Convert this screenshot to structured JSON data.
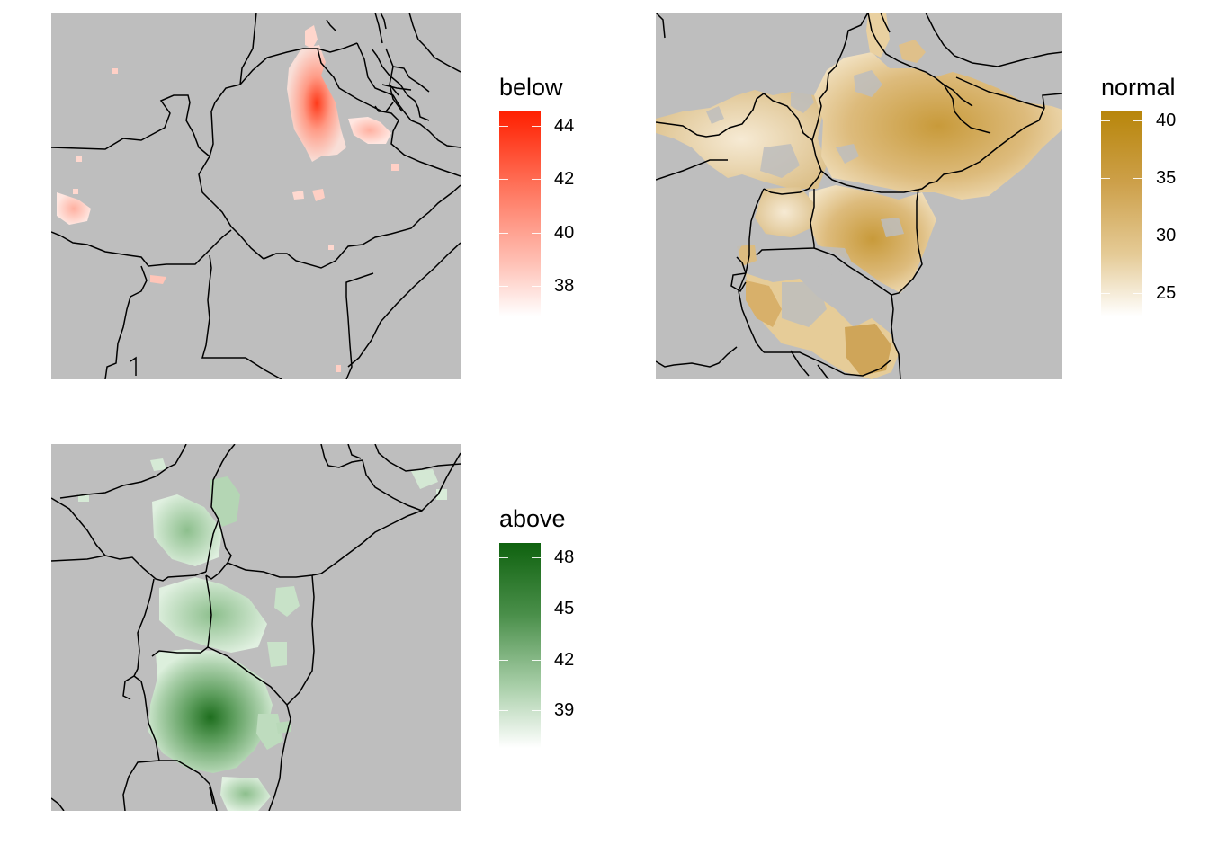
{
  "figure": {
    "panels": [
      {
        "id": "below",
        "legend_title": "below",
        "color_low": "#ffffff",
        "color_high": "#ff2000",
        "range": [
          36.6,
          44.6
        ],
        "ticks": [
          {
            "value": 38,
            "label": "38"
          },
          {
            "value": 40,
            "label": "40"
          },
          {
            "value": 42,
            "label": "42"
          },
          {
            "value": 44,
            "label": "44"
          }
        ]
      },
      {
        "id": "normal",
        "legend_title": "normal",
        "color_low": "#ffffff",
        "color_high": "#b8860b",
        "range": [
          22.5,
          41.0
        ],
        "ticks": [
          {
            "value": 25,
            "label": "25"
          },
          {
            "value": 30,
            "label": "30"
          },
          {
            "value": 35,
            "label": "35"
          },
          {
            "value": 40,
            "label": "40"
          }
        ]
      },
      {
        "id": "above",
        "legend_title": "above",
        "color_low": "#ffffff",
        "color_high": "#0f620f",
        "range": [
          36.8,
          48.8
        ],
        "ticks": [
          {
            "value": 39,
            "label": "39"
          },
          {
            "value": 42,
            "label": "42"
          },
          {
            "value": 45,
            "label": "45"
          },
          {
            "value": 48,
            "label": "48"
          }
        ]
      }
    ],
    "map_background": "#bebebe",
    "border_color": "#000000"
  }
}
